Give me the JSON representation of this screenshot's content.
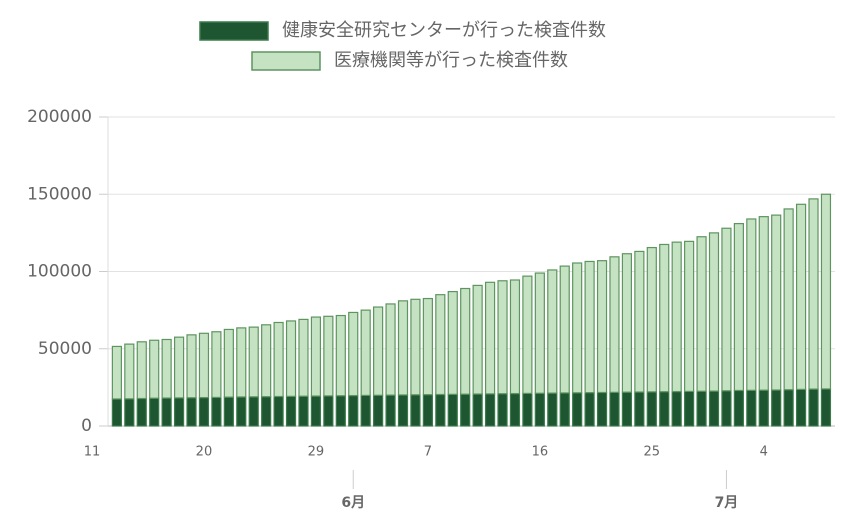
{
  "chart_data": {
    "type": "stacked_bar",
    "x": [
      "05-13",
      "05-14",
      "05-15",
      "05-16",
      "05-17",
      "05-18",
      "05-19",
      "05-20",
      "05-21",
      "05-22",
      "05-23",
      "05-24",
      "05-25",
      "05-26",
      "05-27",
      "05-28",
      "05-29",
      "05-30",
      "05-31",
      "06-01",
      "06-02",
      "06-03",
      "06-04",
      "06-05",
      "06-06",
      "06-07",
      "06-08",
      "06-09",
      "06-10",
      "06-11",
      "06-12",
      "06-13",
      "06-14",
      "06-15",
      "06-16",
      "06-17",
      "06-18",
      "06-19",
      "06-20",
      "06-21",
      "06-22",
      "06-23",
      "06-24",
      "06-25",
      "06-26",
      "06-27",
      "06-28",
      "06-29",
      "06-30",
      "07-01",
      "07-02",
      "07-03",
      "07-04",
      "07-05",
      "07-06",
      "07-07",
      "07-08",
      "07-09"
    ],
    "series": [
      {
        "name": "健康安全研究センターが行った検査件数",
        "color": "#1e5631",
        "edgecolor": "#3a7a4a",
        "values": [
          17500,
          17600,
          17800,
          18000,
          18100,
          18200,
          18300,
          18400,
          18500,
          18700,
          18800,
          18900,
          19000,
          19100,
          19200,
          19300,
          19400,
          19500,
          19600,
          19700,
          19800,
          19900,
          20000,
          20100,
          20200,
          20300,
          20400,
          20500,
          20600,
          20700,
          20800,
          20900,
          21000,
          21100,
          21200,
          21300,
          21400,
          21500,
          21600,
          21700,
          21800,
          21900,
          22000,
          22100,
          22200,
          22300,
          22400,
          22500,
          22600,
          22800,
          23000,
          23100,
          23200,
          23300,
          23500,
          23700,
          23900,
          24000
        ]
      },
      {
        "name": "医療機関等が行った検査件数",
        "color": "#c5e3c3",
        "edgecolor": "#5e9460",
        "values": [
          34000,
          35400,
          36700,
          37500,
          37900,
          39300,
          40700,
          41600,
          42500,
          43800,
          44700,
          45100,
          46500,
          47900,
          48800,
          49700,
          51100,
          51500,
          51900,
          53800,
          55200,
          57100,
          59000,
          60900,
          61800,
          62200,
          64600,
          66500,
          68400,
          70300,
          72200,
          73100,
          73500,
          75900,
          77800,
          79700,
          82100,
          84000,
          84900,
          85300,
          87700,
          89600,
          91000,
          93400,
          95300,
          96700,
          97100,
          100000,
          102400,
          105200,
          108000,
          110900,
          112300,
          113200,
          117000,
          119800,
          123100,
          126000
        ]
      }
    ],
    "ylim": [
      0,
      200000
    ],
    "yticks": [
      0,
      50000,
      100000,
      150000,
      200000
    ],
    "grid": true,
    "xticks": [
      {
        "value": "05-11",
        "label": "11"
      },
      {
        "value": "05-20",
        "label": "20"
      },
      {
        "value": "05-29",
        "label": "29"
      },
      {
        "value": "06-07",
        "label": "7"
      },
      {
        "value": "06-16",
        "label": "16"
      },
      {
        "value": "06-25",
        "label": "25"
      },
      {
        "value": "07-04",
        "label": "4"
      }
    ],
    "month_ticks": [
      {
        "value": "06-01",
        "label": "6月"
      },
      {
        "value": "07-01",
        "label": "7月"
      }
    ],
    "legend": "top"
  }
}
